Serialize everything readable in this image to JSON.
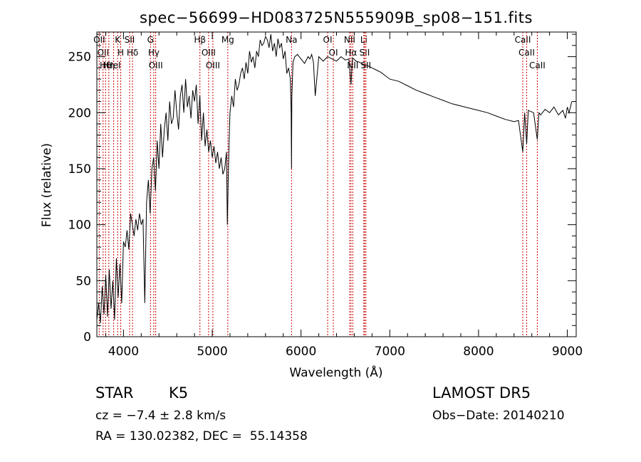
{
  "chart_data": {
    "type": "line",
    "title": "spec−56699−HD083725N555909B_sp08−151.fits",
    "xlabel": "Wavelength (Å)",
    "ylabel": "Flux (relative)",
    "xlim": [
      3700,
      9100
    ],
    "ylim": [
      0,
      272
    ],
    "xticks": [
      4000,
      5000,
      6000,
      7000,
      8000,
      9000
    ],
    "yticks": [
      0,
      50,
      100,
      150,
      200,
      250
    ],
    "grid": false,
    "series": [
      {
        "x": [
          3700,
          3720,
          3740,
          3760,
          3780,
          3800,
          3820,
          3840,
          3860,
          3880,
          3900,
          3920,
          3940,
          3960,
          3980,
          4000,
          4020,
          4040,
          4060,
          4080,
          4100,
          4120,
          4140,
          4160,
          4180,
          4200,
          4220,
          4240,
          4260,
          4280,
          4300,
          4320,
          4340,
          4360,
          4380,
          4400,
          4420,
          4440,
          4460,
          4480,
          4500,
          4520,
          4540,
          4560,
          4580,
          4600,
          4620,
          4640,
          4660,
          4680,
          4700,
          4720,
          4740,
          4760,
          4780,
          4800,
          4820,
          4840,
          4860,
          4880,
          4900,
          4920,
          4940,
          4960,
          4980,
          5000,
          5020,
          5040,
          5060,
          5080,
          5100,
          5120,
          5140,
          5160,
          5170,
          5183,
          5190,
          5200,
          5220,
          5240,
          5260,
          5280,
          5300,
          5320,
          5340,
          5360,
          5380,
          5400,
          5420,
          5440,
          5460,
          5480,
          5500,
          5520,
          5540,
          5560,
          5580,
          5600,
          5620,
          5640,
          5660,
          5680,
          5700,
          5720,
          5740,
          5760,
          5780,
          5800,
          5820,
          5840,
          5860,
          5880,
          5889,
          5893,
          5897,
          5910,
          5930,
          5960,
          6000,
          6040,
          6080,
          6100,
          6120,
          6140,
          6160,
          6200,
          6250,
          6300,
          6350,
          6400,
          6450,
          6500,
          6540,
          6563,
          6580,
          6620,
          6660,
          6700,
          6750,
          6800,
          6850,
          6900,
          6950,
          7000,
          7050,
          7100,
          7200,
          7300,
          7400,
          7500,
          7600,
          7700,
          7800,
          7900,
          8000,
          8100,
          8200,
          8300,
          8400,
          8450,
          8498,
          8520,
          8542,
          8560,
          8620,
          8662,
          8680,
          8700,
          8750,
          8800,
          8850,
          8900,
          8950,
          8980,
          9000,
          9020,
          9050
        ],
        "values": [
          15,
          30,
          12,
          45,
          20,
          55,
          18,
          60,
          25,
          50,
          15,
          70,
          35,
          65,
          30,
          85,
          80,
          95,
          78,
          110,
          100,
          90,
          105,
          95,
          110,
          100,
          105,
          30,
          120,
          140,
          110,
          150,
          160,
          130,
          175,
          150,
          190,
          160,
          185,
          200,
          175,
          210,
          190,
          195,
          220,
          200,
          185,
          215,
          225,
          200,
          230,
          205,
          215,
          195,
          220,
          210,
          225,
          190,
          215,
          175,
          200,
          170,
          185,
          165,
          175,
          160,
          170,
          155,
          165,
          150,
          160,
          145,
          150,
          165,
          100,
          150,
          175,
          200,
          215,
          205,
          230,
          220,
          225,
          235,
          240,
          230,
          245,
          235,
          255,
          245,
          250,
          240,
          255,
          250,
          265,
          260,
          262,
          268,
          265,
          258,
          270,
          255,
          262,
          250,
          266,
          258,
          262,
          248,
          255,
          235,
          240,
          230,
          200,
          150,
          215,
          245,
          250,
          252,
          248,
          244,
          250,
          248,
          252,
          245,
          215,
          250,
          246,
          250,
          248,
          246,
          250,
          247,
          248,
          225,
          249,
          246,
          245,
          243,
          242,
          240,
          238,
          236,
          233,
          230,
          229,
          228,
          224,
          220,
          217,
          214,
          211,
          208,
          206,
          204,
          202,
          200,
          197,
          194,
          192,
          193,
          165,
          200,
          172,
          202,
          200,
          176,
          200,
          198,
          203,
          200,
          205,
          198,
          202,
          195,
          205,
          200,
          210
        ]
      }
    ],
    "line_ids": [
      {
        "label": "Hθ",
        "x": 3798
      },
      {
        "label": "OII",
        "x": 3727
      },
      {
        "label": "OII",
        "x": 3770
      },
      {
        "label": "Hη",
        "x": 3835
      },
      {
        "label": "K",
        "x": 3934
      },
      {
        "label": "HeI",
        "x": 3889
      },
      {
        "label": "H",
        "x": 3969
      },
      {
        "label": "Hδ",
        "x": 4102
      },
      {
        "label": "SII",
        "x": 4069
      },
      {
        "label": "OIII",
        "x": 4363
      },
      {
        "label": "Hγ",
        "x": 4341
      },
      {
        "label": "G",
        "x": 4304
      },
      {
        "label": "Hβ",
        "x": 4861
      },
      {
        "label": "OIII",
        "x": 4959
      },
      {
        "label": "OIII",
        "x": 5007
      },
      {
        "label": "Mg",
        "x": 5175
      },
      {
        "label": "Na",
        "x": 5893
      },
      {
        "label": "OI",
        "x": 6300
      },
      {
        "label": "OI",
        "x": 6364
      },
      {
        "label": "Hα",
        "x": 6563
      },
      {
        "label": "NII",
        "x": 6548
      },
      {
        "label": "NII",
        "x": 6583
      },
      {
        "label": "SII",
        "x": 6716
      },
      {
        "label": "SII",
        "x": 6731
      },
      {
        "label": "Li",
        "x": 6708
      },
      {
        "label": "CaII",
        "x": 8498
      },
      {
        "label": "CaII",
        "x": 8542
      },
      {
        "label": "CaII",
        "x": 8662
      }
    ]
  },
  "info": {
    "object_class": "STAR",
    "subclass": "K5",
    "cz": "cz = −7.4 ± 2.8 km/s",
    "coords": "RA = 130.02382, DEC =  55.14358",
    "survey": "LAMOST DR5",
    "obs_date": "Obs−Date: 20140210"
  }
}
